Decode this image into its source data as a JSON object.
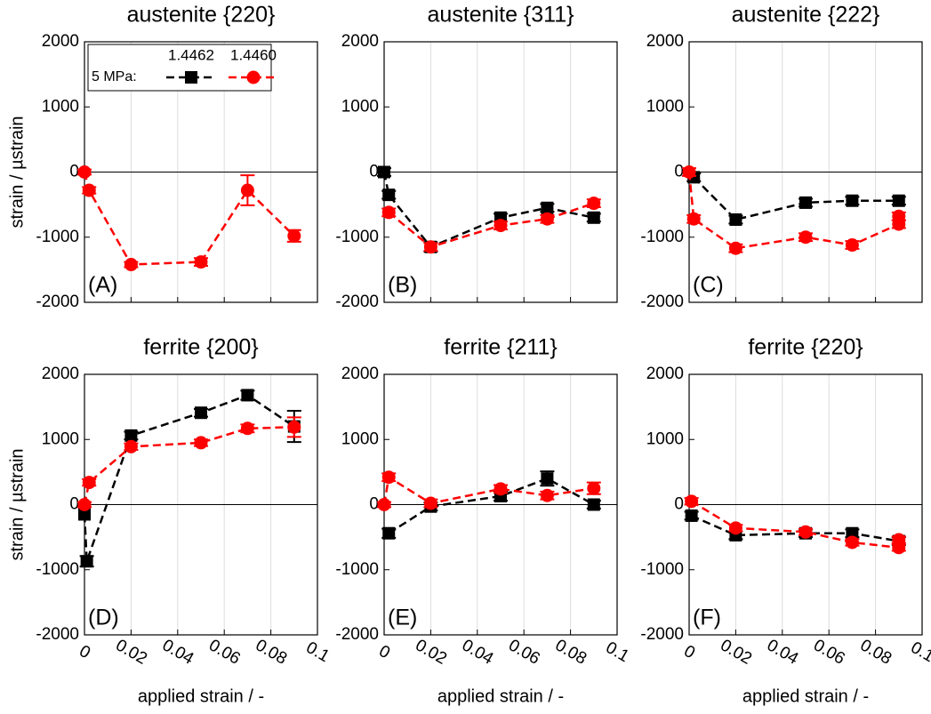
{
  "chart_data": [
    {
      "type": "line",
      "title": "austenite {220}",
      "label": "(A)",
      "ylabel": "strain / µstrain",
      "legend_title": "5 MPa:",
      "xlim": [
        0,
        0.1
      ],
      "xticks": [
        0,
        0.02,
        0.04,
        0.06,
        0.08,
        0.1
      ],
      "ylim": [
        -2000,
        2000
      ],
      "yticks": [
        -2000,
        -1000,
        0,
        1000,
        2000
      ],
      "grid": true,
      "series": [
        {
          "name": "1.4462",
          "color": "#000000",
          "marker": "square",
          "x": [
            0,
            0.002,
            0.02,
            0.05,
            0.07,
            0.09
          ],
          "values": [
            null,
            null,
            null,
            null,
            null,
            null
          ],
          "errors": [
            null,
            null,
            null,
            null,
            null,
            null
          ]
        },
        {
          "name": "1.4460",
          "color": "#ff0000",
          "marker": "circle",
          "x": [
            0,
            0.002,
            0.02,
            0.05,
            0.07,
            0.09
          ],
          "values": [
            0,
            -280,
            -1420,
            -1380,
            -280,
            -980
          ],
          "errors": [
            40,
            50,
            40,
            60,
            230,
            90
          ]
        }
      ]
    },
    {
      "type": "line",
      "title": "austenite {311}",
      "label": "(B)",
      "xlim": [
        0,
        0.1
      ],
      "xticks": [
        0,
        0.02,
        0.04,
        0.06,
        0.08,
        0.1
      ],
      "ylim": [
        -2000,
        2000
      ],
      "yticks": [
        -2000,
        -1000,
        0,
        1000,
        2000
      ],
      "grid": true,
      "series": [
        {
          "color": "#000000",
          "marker": "square",
          "x": [
            0,
            0.002,
            0.02,
            0.05,
            0.07,
            0.09
          ],
          "values": [
            0,
            -350,
            -1150,
            -700,
            -550,
            -700
          ],
          "errors": [
            60,
            60,
            70,
            60,
            60,
            60
          ]
        },
        {
          "color": "#ff0000",
          "marker": "circle",
          "x": [
            0.002,
            0.02,
            0.05,
            0.07,
            0.09
          ],
          "values": [
            -620,
            -1150,
            -820,
            -720,
            -480
          ],
          "errors": [
            60,
            60,
            60,
            60,
            60
          ]
        }
      ]
    },
    {
      "type": "line",
      "title": "austenite {222}",
      "label": "(C)",
      "xlim": [
        0,
        0.1
      ],
      "xticks": [
        0,
        0.02,
        0.04,
        0.06,
        0.08,
        0.1
      ],
      "ylim": [
        -2000,
        2000
      ],
      "yticks": [
        -2000,
        -1000,
        0,
        1000,
        2000
      ],
      "grid": true,
      "series": [
        {
          "color": "#000000",
          "marker": "square",
          "x": [
            0.002,
            0.02,
            0.05,
            0.07,
            0.09
          ],
          "values": [
            -80,
            -730,
            -470,
            -440,
            -440
          ],
          "errors": [
            60,
            60,
            60,
            60,
            60
          ]
        },
        {
          "color": "#ff0000",
          "marker": "circle",
          "x": [
            0,
            0.002,
            0.02,
            0.05,
            0.07,
            0.09,
            0.09
          ],
          "values": [
            0,
            -720,
            -1170,
            -1000,
            -1120,
            -800,
            -680
          ],
          "errors": [
            60,
            60,
            60,
            60,
            60,
            60,
            60
          ]
        }
      ]
    },
    {
      "type": "line",
      "title": "ferrite {200}",
      "label": "(D)",
      "ylabel": "strain / µstrain",
      "xlabel": "applied strain / -",
      "xlim": [
        0,
        0.1
      ],
      "xticks": [
        0,
        0.02,
        0.04,
        0.06,
        0.08,
        0.1
      ],
      "ylim": [
        -2000,
        2000
      ],
      "yticks": [
        -2000,
        -1000,
        0,
        1000,
        2000
      ],
      "grid": true,
      "series": [
        {
          "color": "#000000",
          "marker": "square",
          "x": [
            0,
            0.001,
            0.02,
            0.05,
            0.07,
            0.09
          ],
          "values": [
            -150,
            -870,
            1060,
            1410,
            1680,
            1200
          ],
          "errors": [
            null,
            80,
            60,
            60,
            70,
            240
          ]
        },
        {
          "color": "#ff0000",
          "marker": "circle",
          "x": [
            0,
            0.002,
            0.02,
            0.05,
            0.07,
            0.09
          ],
          "values": [
            0,
            340,
            890,
            950,
            1170,
            1190
          ],
          "errors": [
            40,
            50,
            50,
            50,
            60,
            150
          ]
        }
      ]
    },
    {
      "type": "line",
      "title": "ferrite {211}",
      "label": "(E)",
      "xlabel": "applied strain / -",
      "xlim": [
        0,
        0.1
      ],
      "xticks": [
        0,
        0.02,
        0.04,
        0.06,
        0.08,
        0.1
      ],
      "ylim": [
        -2000,
        2000
      ],
      "yticks": [
        -2000,
        -1000,
        0,
        1000,
        2000
      ],
      "grid": true,
      "series": [
        {
          "color": "#000000",
          "marker": "square",
          "x": [
            0.002,
            0.02,
            0.05,
            0.07,
            0.09
          ],
          "values": [
            -440,
            -30,
            130,
            400,
            0
          ],
          "errors": [
            70,
            60,
            70,
            110,
            60
          ]
        },
        {
          "color": "#ff0000",
          "marker": "circle",
          "x": [
            0,
            0.002,
            0.02,
            0.05,
            0.07,
            0.09
          ],
          "values": [
            0,
            420,
            20,
            240,
            140,
            250
          ],
          "errors": [
            40,
            60,
            60,
            60,
            60,
            90
          ]
        }
      ]
    },
    {
      "type": "line",
      "title": "ferrite {220}",
      "label": "(F)",
      "xlabel": "applied strain / -",
      "xlim": [
        0,
        0.1
      ],
      "xticks": [
        0,
        0.02,
        0.04,
        0.06,
        0.08,
        0.1
      ],
      "ylim": [
        -2000,
        2000
      ],
      "yticks": [
        -2000,
        -1000,
        0,
        1000,
        2000
      ],
      "grid": true,
      "series": [
        {
          "color": "#000000",
          "marker": "square",
          "x": [
            0.001,
            0.02,
            0.05,
            0.07,
            0.09
          ],
          "values": [
            -170,
            -470,
            -440,
            -440,
            -560
          ],
          "errors": [
            60,
            60,
            60,
            60,
            60
          ]
        },
        {
          "color": "#ff0000",
          "marker": "circle",
          "x": [
            0.001,
            0.02,
            0.05,
            0.07,
            0.09,
            0.09
          ],
          "values": [
            50,
            -360,
            -420,
            -580,
            -660,
            -540
          ],
          "errors": [
            50,
            50,
            50,
            50,
            50,
            50
          ]
        }
      ]
    }
  ]
}
